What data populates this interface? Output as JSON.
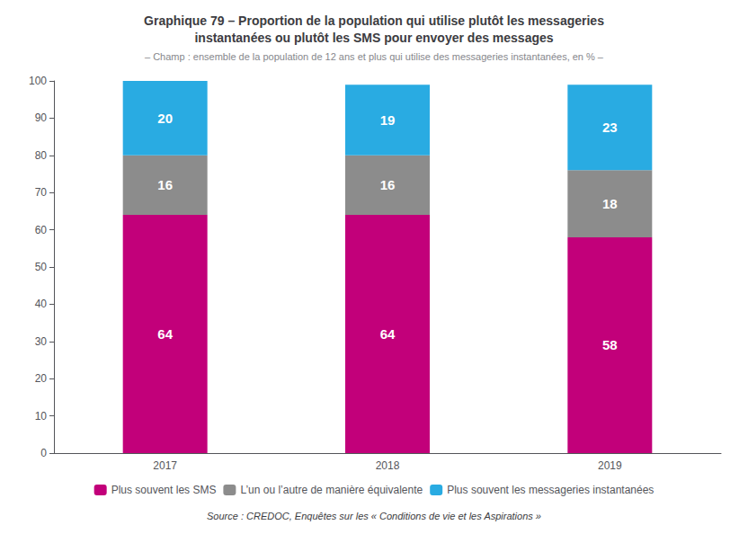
{
  "chart_data": {
    "type": "bar",
    "title": "Graphique 79 – Proportion de la population qui utilise plutôt les messageries\ninstantanées ou plutôt les SMS pour envoyer des messages",
    "subtitle": "– Champ : ensemble de la population de 12 ans et plus qui utilise des messageries instantanées, en % –",
    "annotations": [
      "Source : CREDOC, Enquêtes sur les « Conditions de vie et les Aspirations »"
    ],
    "categories": [
      "2017",
      "2018",
      "2019"
    ],
    "series": [
      {
        "name": "Plus souvent les SMS",
        "color": "#C2007A",
        "values": [
          64,
          64,
          58
        ]
      },
      {
        "name": "L’un ou l’autre de manière équivalente",
        "color": "#8C8C8C",
        "values": [
          16,
          16,
          18
        ]
      },
      {
        "name": "Plus souvent les messageries instantanées",
        "color": "#29ABE2",
        "values": [
          20,
          19,
          23
        ]
      }
    ],
    "stacked": true,
    "data_labels": true,
    "ylim": [
      0,
      100
    ],
    "yticks": [
      0,
      10,
      20,
      30,
      40,
      50,
      60,
      70,
      80,
      90,
      100
    ],
    "grid": false,
    "legend": "bottom"
  }
}
